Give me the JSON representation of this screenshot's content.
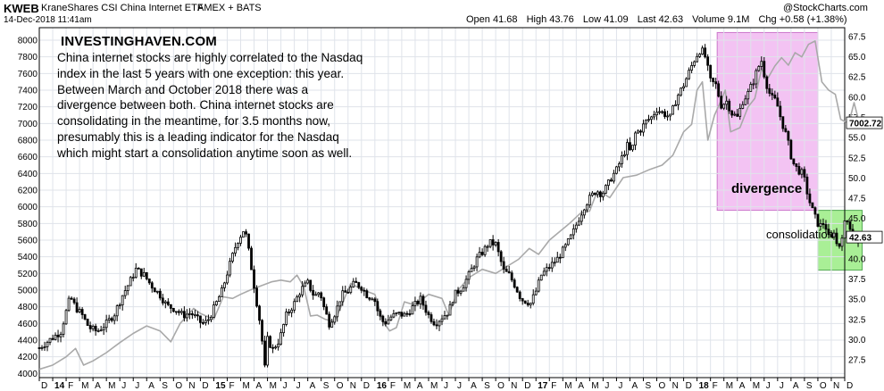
{
  "header": {
    "ticker": "KWEB",
    "name": "KraneShares CSI China Internet ETF",
    "exchange": "AMEX + BATS",
    "date": "14-Dec-2018 11:41am",
    "copyright": "@StockCharts.com",
    "stats": {
      "open_label": "Open",
      "open": "41.68",
      "high_label": "High",
      "high": "43.76",
      "low_label": "Low",
      "low": "41.09",
      "last_label": "Last",
      "last": "42.63",
      "volume_label": "Volume",
      "volume": "9.1M",
      "chg_label": "Chg",
      "chg": "+0.58 (+1.38%)"
    }
  },
  "annotation": {
    "brand": "INVESTINGHAVEN.COM",
    "lines": [
      "China internet stocks are highly correlated to the Nasdaq",
      "index in the last 5 years with one exception: this year.",
      "Between March and October 2018 there was a",
      "divergence between both. China internet stocks are",
      "consolidating in the meantime, for 3.5 months now,",
      "presumably this is a leading indicator for the Nasdaq",
      "which might start a consolidation anytime soon as well."
    ],
    "divergence_label": "divergence",
    "consolidation_label": "consolidation"
  },
  "colors": {
    "candle": "#000000",
    "nasdaq_line": "#a9a9a9",
    "divergence_box": "#f3c3f3",
    "divergence_border": "#cc77cc",
    "consolidation_box": "#a9ef96",
    "consolidation_border": "#55aa55",
    "grid": "#dfe3ea",
    "last_price_box": "#ffffff"
  },
  "chart_data": {
    "type": "line",
    "x_unit": "month",
    "x_start": "2013-12",
    "x_end": "2018-12",
    "x_ticks": [
      "D",
      "14",
      "F",
      "M",
      "A",
      "M",
      "J",
      "J",
      "A",
      "S",
      "O",
      "N",
      "D",
      "15",
      "F",
      "M",
      "A",
      "M",
      "J",
      "J",
      "A",
      "S",
      "O",
      "N",
      "D",
      "16",
      "F",
      "M",
      "A",
      "M",
      "J",
      "J",
      "A",
      "S",
      "O",
      "N",
      "D",
      "17",
      "F",
      "M",
      "A",
      "M",
      "J",
      "J",
      "A",
      "S",
      "O",
      "N",
      "D",
      "18",
      "F",
      "M",
      "A",
      "M",
      "J",
      "J",
      "A",
      "S",
      "O",
      "N",
      "D"
    ],
    "left_axis": {
      "label": "Nasdaq",
      "range": [
        3950,
        8150
      ],
      "ticks": [
        4000,
        4200,
        4400,
        4600,
        4800,
        5000,
        5200,
        5400,
        5600,
        5800,
        6000,
        6200,
        6400,
        6600,
        6800,
        7000,
        7200,
        7400,
        7600,
        7800,
        8000
      ],
      "last_value": "7002.72"
    },
    "right_axis": {
      "label": "KWEB",
      "range": [
        25.3,
        68.6
      ],
      "ticks": [
        27.5,
        30.0,
        32.5,
        35.0,
        37.5,
        40.0,
        42.5,
        45.0,
        47.5,
        50.0,
        52.5,
        55.0,
        57.5,
        60.0,
        62.5,
        65.0,
        67.5
      ],
      "last_value": "42.63"
    },
    "series": [
      {
        "name": "Nasdaq",
        "axis": "left",
        "style": "line",
        "points": [
          [
            0,
            4050
          ],
          [
            1.0,
            4100
          ],
          [
            2.0,
            4200
          ],
          [
            2.7,
            4300
          ],
          [
            3.3,
            4100
          ],
          [
            4.0,
            4150
          ],
          [
            5.0,
            4250
          ],
          [
            6.0,
            4370
          ],
          [
            7.0,
            4480
          ],
          [
            8.0,
            4570
          ],
          [
            9.0,
            4510
          ],
          [
            9.8,
            4380
          ],
          [
            10.5,
            4600
          ],
          [
            11.5,
            4780
          ],
          [
            12.0,
            4720
          ],
          [
            13.0,
            4650
          ],
          [
            13.7,
            4920
          ],
          [
            14.4,
            4900
          ],
          [
            15.0,
            4950
          ],
          [
            15.7,
            5000
          ],
          [
            16.5,
            5050
          ],
          [
            17.3,
            5100
          ],
          [
            18.0,
            5120
          ],
          [
            18.7,
            5100
          ],
          [
            19.2,
            5180
          ],
          [
            19.7,
            5040
          ],
          [
            20.2,
            4690
          ],
          [
            20.7,
            4700
          ],
          [
            21.3,
            4650
          ],
          [
            22.0,
            4620
          ],
          [
            22.6,
            4850
          ],
          [
            23.2,
            5080
          ],
          [
            24.0,
            5010
          ],
          [
            25.0,
            4950
          ],
          [
            25.6,
            4620
          ],
          [
            26.1,
            4510
          ],
          [
            26.6,
            4550
          ],
          [
            27.2,
            4860
          ],
          [
            28.0,
            4820
          ],
          [
            29.0,
            4950
          ],
          [
            30.0,
            4900
          ],
          [
            30.5,
            4700
          ],
          [
            31.2,
            5000
          ],
          [
            32.0,
            5150
          ],
          [
            33.0,
            5250
          ],
          [
            34.0,
            5200
          ],
          [
            35.0,
            5300
          ],
          [
            35.7,
            5370
          ],
          [
            36.5,
            5500
          ],
          [
            37.2,
            5430
          ],
          [
            38.0,
            5600
          ],
          [
            38.6,
            5680
          ],
          [
            39.5,
            5800
          ],
          [
            40.3,
            5920
          ],
          [
            41.0,
            5950
          ],
          [
            41.4,
            6120
          ],
          [
            41.8,
            6180
          ],
          [
            42.5,
            6110
          ],
          [
            43.5,
            6350
          ],
          [
            44.5,
            6380
          ],
          [
            45.5,
            6450
          ],
          [
            46.4,
            6500
          ],
          [
            47.2,
            6620
          ],
          [
            48.0,
            6900
          ],
          [
            48.6,
            6990
          ],
          [
            49.0,
            7400
          ],
          [
            49.4,
            7500
          ],
          [
            49.8,
            6800
          ],
          [
            50.3,
            7100
          ],
          [
            50.8,
            7280
          ],
          [
            51.1,
            7400
          ],
          [
            51.5,
            6900
          ],
          [
            52.2,
            6950
          ],
          [
            52.8,
            7200
          ],
          [
            53.3,
            7300
          ],
          [
            53.8,
            7650
          ],
          [
            54.3,
            7550
          ],
          [
            54.8,
            7690
          ],
          [
            55.3,
            7790
          ],
          [
            55.8,
            7700
          ],
          [
            56.3,
            7850
          ],
          [
            56.8,
            7800
          ],
          [
            57.3,
            7950
          ],
          [
            57.8,
            7990
          ],
          [
            58.3,
            7500
          ],
          [
            58.8,
            7400
          ],
          [
            59.3,
            7350
          ],
          [
            59.5,
            7200
          ],
          [
            59.7,
            7050
          ],
          [
            60.3,
            7000
          ],
          [
            60.7,
            7250
          ],
          [
            61.1,
            7000
          ]
        ]
      },
      {
        "name": "KWEB",
        "axis": "right",
        "style": "candlestick",
        "points": [
          [
            0,
            29.0
          ],
          [
            0.8,
            30.0
          ],
          [
            1.6,
            31.0
          ],
          [
            2.3,
            35.3
          ],
          [
            2.7,
            34.0
          ],
          [
            3.2,
            33.0
          ],
          [
            3.7,
            31.5
          ],
          [
            4.3,
            31.0
          ],
          [
            5.0,
            32.0
          ],
          [
            5.6,
            33.2
          ],
          [
            6.2,
            35.5
          ],
          [
            6.7,
            37.0
          ],
          [
            7.2,
            38.7
          ],
          [
            7.8,
            38.0
          ],
          [
            8.3,
            36.8
          ],
          [
            9.0,
            35.5
          ],
          [
            9.5,
            34.2
          ],
          [
            10.1,
            33.8
          ],
          [
            10.7,
            33.0
          ],
          [
            11.3,
            33.3
          ],
          [
            12.1,
            32.0
          ],
          [
            12.5,
            32.2
          ],
          [
            12.9,
            33.5
          ],
          [
            13.6,
            36.0
          ],
          [
            14.1,
            38.8
          ],
          [
            14.7,
            42.0
          ],
          [
            15.3,
            43.8
          ],
          [
            15.7,
            40.0
          ],
          [
            16.1,
            35.6
          ],
          [
            16.5,
            31.5
          ],
          [
            16.8,
            26.5
          ],
          [
            17.0,
            30.0
          ],
          [
            17.4,
            28.8
          ],
          [
            17.9,
            30.0
          ],
          [
            18.4,
            33.0
          ],
          [
            19.0,
            34.5
          ],
          [
            19.5,
            36.2
          ],
          [
            20.0,
            37.0
          ],
          [
            20.5,
            35.3
          ],
          [
            20.9,
            36.0
          ],
          [
            21.2,
            34.0
          ],
          [
            21.6,
            32.0
          ],
          [
            22.1,
            33.5
          ],
          [
            22.5,
            35.5
          ],
          [
            23.0,
            36.0
          ],
          [
            23.5,
            37.0
          ],
          [
            24.0,
            36.5
          ],
          [
            24.5,
            35.3
          ],
          [
            24.9,
            35.4
          ],
          [
            25.3,
            33.0
          ],
          [
            25.7,
            32.0
          ],
          [
            26.2,
            32.8
          ],
          [
            26.7,
            33.2
          ],
          [
            27.3,
            33.0
          ],
          [
            27.8,
            34.0
          ],
          [
            28.4,
            35.0
          ],
          [
            29.0,
            33.0
          ],
          [
            29.5,
            32.0
          ],
          [
            30.0,
            32.8
          ],
          [
            30.5,
            33.5
          ],
          [
            30.9,
            35.5
          ],
          [
            31.5,
            36.5
          ],
          [
            32.0,
            38.0
          ],
          [
            32.6,
            40.0
          ],
          [
            33.1,
            41.0
          ],
          [
            33.5,
            42.0
          ],
          [
            34.0,
            41.8
          ],
          [
            34.6,
            38.5
          ],
          [
            35.0,
            38.0
          ],
          [
            35.5,
            36.5
          ],
          [
            35.9,
            35.0
          ],
          [
            36.2,
            34.8
          ],
          [
            36.6,
            34.5
          ],
          [
            37.0,
            36.0
          ],
          [
            37.4,
            38.0
          ],
          [
            38.0,
            39.0
          ],
          [
            38.6,
            40.0
          ],
          [
            39.2,
            41.5
          ],
          [
            39.7,
            43.0
          ],
          [
            40.2,
            45.0
          ],
          [
            40.6,
            46.5
          ],
          [
            41.0,
            47.5
          ],
          [
            41.5,
            48.5
          ],
          [
            41.9,
            48.0
          ],
          [
            42.3,
            49.0
          ],
          [
            42.6,
            50.0
          ],
          [
            43.0,
            51.0
          ],
          [
            43.4,
            52.5
          ],
          [
            43.8,
            54.0
          ],
          [
            44.1,
            53.0
          ],
          [
            44.4,
            55.5
          ],
          [
            44.8,
            56.0
          ],
          [
            45.2,
            57.0
          ],
          [
            45.6,
            57.5
          ],
          [
            46.0,
            58.5
          ],
          [
            46.5,
            58.0
          ],
          [
            47.0,
            57.5
          ],
          [
            47.5,
            60.0
          ],
          [
            48.0,
            61.5
          ],
          [
            48.5,
            63.5
          ],
          [
            48.9,
            65.0
          ],
          [
            49.3,
            66.0
          ],
          [
            49.6,
            65.0
          ],
          [
            50.0,
            62.0
          ],
          [
            50.4,
            61.5
          ],
          [
            50.8,
            59.0
          ],
          [
            51.2,
            59.5
          ],
          [
            51.6,
            58.0
          ],
          [
            52.0,
            57.5
          ],
          [
            52.4,
            59.5
          ],
          [
            52.8,
            60.5
          ],
          [
            53.2,
            62.0
          ],
          [
            53.5,
            63.5
          ],
          [
            53.8,
            64.5
          ],
          [
            54.1,
            62.0
          ],
          [
            54.5,
            60.0
          ],
          [
            54.9,
            59.5
          ],
          [
            55.3,
            57.0
          ],
          [
            55.7,
            55.0
          ],
          [
            56.1,
            52.0
          ],
          [
            56.5,
            51.0
          ],
          [
            56.9,
            50.5
          ],
          [
            57.3,
            47.5
          ],
          [
            57.7,
            45.5
          ],
          [
            58.1,
            44.0
          ],
          [
            58.5,
            44.5
          ],
          [
            58.9,
            42.0
          ],
          [
            59.2,
            43.5
          ],
          [
            59.5,
            41.0
          ],
          [
            59.8,
            43.0
          ],
          [
            60.1,
            45.0
          ],
          [
            60.4,
            44.0
          ],
          [
            60.7,
            42.0
          ],
          [
            61.0,
            42.63
          ]
        ]
      }
    ],
    "annotations": [
      {
        "type": "shaded_region",
        "label": "divergence",
        "x_from": 50.5,
        "x_to": 58.0,
        "y_from": 46.0,
        "y_to": 68.0
      },
      {
        "type": "shaded_region",
        "label": "consolidation",
        "x_from": 58.0,
        "x_to": 61.3,
        "y_from": 38.6,
        "y_to": 46.0
      }
    ]
  }
}
